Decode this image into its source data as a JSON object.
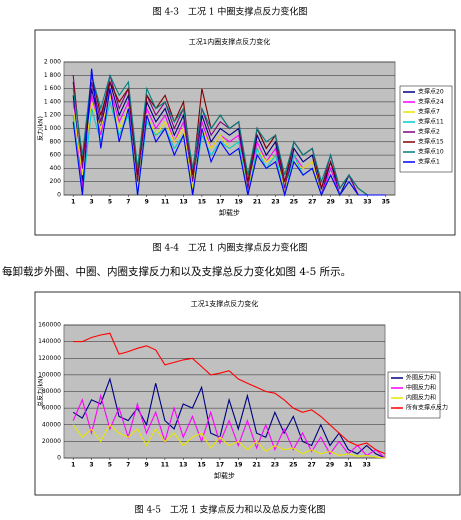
{
  "captions": [
    "图 4-3　工况 1 中圈支撑点反力变化图",
    "图 4-4　工况 1 内圈支撑点反力变化图",
    "图 4-5　工况 1 支撑点反力和以及总反力变化图"
  ],
  "paragraph": "每卸载步外圈、中圈、内圈支撑反力和以及支撑总反力变化如图 4-5 所示。",
  "chart_data": [
    {
      "type": "line",
      "title": "工况1内圈支撑点反力变化",
      "y_label": "反力(kN)",
      "x_label": "卸载步",
      "x": [
        1,
        2,
        3,
        4,
        5,
        6,
        7,
        8,
        9,
        10,
        11,
        12,
        13,
        14,
        15,
        16,
        17,
        18,
        19,
        20,
        21,
        22,
        23,
        24,
        25,
        26,
        27,
        28,
        29,
        30,
        31,
        32,
        33,
        34,
        35
      ],
      "xlim": [
        0,
        36
      ],
      "xticks": [
        1,
        3,
        5,
        7,
        9,
        11,
        13,
        15,
        17,
        19,
        21,
        23,
        25,
        27,
        29,
        31,
        33,
        35
      ],
      "ylim": [
        0,
        2000
      ],
      "yticks": [
        0,
        200,
        400,
        600,
        800,
        {
          "value": 1000,
          "label": "1 000"
        },
        {
          "value": 1200,
          "label": "1 200"
        },
        {
          "value": 1400,
          "label": "1 400"
        },
        {
          "value": 1600,
          "label": "1 600"
        },
        {
          "value": 1800,
          "label": "1 800"
        },
        {
          "value": 2000,
          "label": "2 000"
        }
      ],
      "grid": true,
      "series": [
        {
          "name": "支撑点20",
          "color": "#000080",
          "values": [
            1500,
            200,
            1600,
            1000,
            1700,
            1200,
            1500,
            0,
            1400,
            1100,
            1300,
            900,
            1200,
            0,
            1200,
            800,
            1000,
            900,
            1000,
            0,
            900,
            600,
            800,
            0,
            700,
            500,
            600,
            0,
            500,
            0,
            300,
            0,
            0,
            0,
            0
          ]
        },
        {
          "name": "支撑点24",
          "color": "#ff00ff",
          "values": [
            1400,
            100,
            1500,
            900,
            1600,
            1100,
            1400,
            0,
            1300,
            1000,
            1200,
            800,
            1100,
            0,
            1100,
            700,
            900,
            800,
            900,
            0,
            800,
            500,
            700,
            0,
            600,
            400,
            500,
            0,
            400,
            0,
            200,
            0,
            0,
            0,
            0
          ]
        },
        {
          "name": "支撑点7",
          "color": "#e6e600",
          "values": [
            1300,
            300,
            1400,
            1000,
            1500,
            1000,
            1300,
            100,
            1200,
            900,
            1100,
            800,
            1000,
            100,
            1000,
            700,
            900,
            700,
            800,
            100,
            700,
            500,
            600,
            100,
            500,
            400,
            500,
            0,
            300,
            0,
            200,
            0,
            0,
            0,
            0
          ]
        },
        {
          "name": "支撑点11",
          "color": "#00cccc",
          "values": [
            1200,
            0,
            1300,
            800,
            1400,
            900,
            1200,
            0,
            1100,
            900,
            1000,
            700,
            900,
            0,
            900,
            600,
            800,
            700,
            800,
            0,
            700,
            400,
            600,
            0,
            600,
            300,
            400,
            0,
            300,
            0,
            200,
            0,
            0,
            0,
            0
          ]
        },
        {
          "name": "支撑点2",
          "color": "#800080",
          "values": [
            1800,
            400,
            1700,
            1100,
            1800,
            1300,
            1600,
            200,
            1500,
            1200,
            1400,
            1000,
            1300,
            200,
            1300,
            900,
            1100,
            1000,
            1100,
            100,
            1000,
            700,
            900,
            100,
            800,
            600,
            700,
            100,
            600,
            100,
            300,
            0,
            0,
            0,
            0
          ]
        },
        {
          "name": "支撑点15",
          "color": "#800000",
          "values": [
            1700,
            500,
            1800,
            1200,
            1700,
            1400,
            1600,
            300,
            1500,
            1300,
            1500,
            1100,
            1400,
            300,
            1600,
            1000,
            1200,
            1000,
            1100,
            200,
            1000,
            700,
            900,
            200,
            800,
            600,
            700,
            100,
            500,
            100,
            300,
            100,
            0,
            0,
            0
          ]
        },
        {
          "name": "支撑点10",
          "color": "#008080",
          "values": [
            1600,
            600,
            1800,
            1300,
            1800,
            1500,
            1700,
            400,
            1600,
            1300,
            1400,
            1100,
            1300,
            400,
            1300,
            1000,
            1200,
            1000,
            1100,
            300,
            1000,
            800,
            900,
            300,
            800,
            600,
            700,
            200,
            600,
            100,
            300,
            100,
            0,
            0,
            0
          ]
        },
        {
          "name": "支撑点1",
          "color": "#0000ff",
          "values": [
            1100,
            0,
            1900,
            700,
            1600,
            800,
            1300,
            0,
            1200,
            800,
            1000,
            600,
            900,
            0,
            1000,
            500,
            800,
            600,
            700,
            0,
            600,
            400,
            500,
            0,
            500,
            300,
            400,
            0,
            300,
            0,
            200,
            0,
            0,
            0,
            0
          ]
        }
      ]
    },
    {
      "type": "line",
      "title": "工况1支撑点反力变化",
      "y_label": "总反力(kN)",
      "x_label": "卸载步",
      "x": [
        1,
        2,
        3,
        4,
        5,
        6,
        7,
        8,
        9,
        10,
        11,
        12,
        13,
        14,
        15,
        16,
        17,
        18,
        19,
        20,
        21,
        22,
        23,
        24,
        25,
        26,
        27,
        28,
        29,
        30,
        31,
        32,
        33,
        34,
        35
      ],
      "xlim": [
        0,
        35
      ],
      "xticks": [
        1,
        3,
        5,
        7,
        9,
        11,
        13,
        15,
        17,
        19,
        21,
        23,
        25,
        27,
        29,
        31,
        33
      ],
      "ylim": [
        0,
        160000
      ],
      "yticks": [
        0,
        20000,
        40000,
        60000,
        80000,
        100000,
        120000,
        140000,
        160000
      ],
      "grid": true,
      "series": [
        {
          "name": "外圈反力和",
          "color": "#000080",
          "values": [
            55000,
            48000,
            70000,
            65000,
            95000,
            50000,
            45000,
            60000,
            40000,
            90000,
            45000,
            35000,
            65000,
            60000,
            85000,
            30000,
            25000,
            70000,
            35000,
            75000,
            30000,
            25000,
            55000,
            30000,
            50000,
            20000,
            15000,
            40000,
            15000,
            30000,
            10000,
            5000,
            15000,
            5000,
            0
          ]
        },
        {
          "name": "中圈反力和",
          "color": "#ff00ff",
          "values": [
            45000,
            70000,
            30000,
            75000,
            35000,
            60000,
            25000,
            65000,
            30000,
            55000,
            20000,
            60000,
            25000,
            50000,
            20000,
            55000,
            18000,
            45000,
            15000,
            45000,
            12000,
            40000,
            10000,
            35000,
            10000,
            30000,
            8000,
            25000,
            5000,
            20000,
            5000,
            15000,
            3000,
            10000,
            0
          ]
        },
        {
          "name": "内圈反力和",
          "color": "#e6e600",
          "values": [
            40000,
            25000,
            35000,
            20000,
            40000,
            30000,
            25000,
            35000,
            15000,
            35000,
            20000,
            30000,
            15000,
            25000,
            30000,
            12000,
            25000,
            15000,
            20000,
            10000,
            20000,
            8000,
            15000,
            10000,
            12000,
            5000,
            10000,
            5000,
            8000,
            3000,
            5000,
            2000,
            3000,
            1000,
            0
          ]
        },
        {
          "name": "所有支撑点反力",
          "color": "#ff0000",
          "values": [
            140000,
            140000,
            145000,
            148000,
            150000,
            125000,
            128000,
            132000,
            135000,
            130000,
            112000,
            115000,
            118000,
            120000,
            110000,
            100000,
            102000,
            105000,
            95000,
            90000,
            85000,
            80000,
            78000,
            70000,
            60000,
            55000,
            58000,
            50000,
            40000,
            30000,
            20000,
            15000,
            18000,
            10000,
            5000
          ]
        }
      ]
    }
  ]
}
